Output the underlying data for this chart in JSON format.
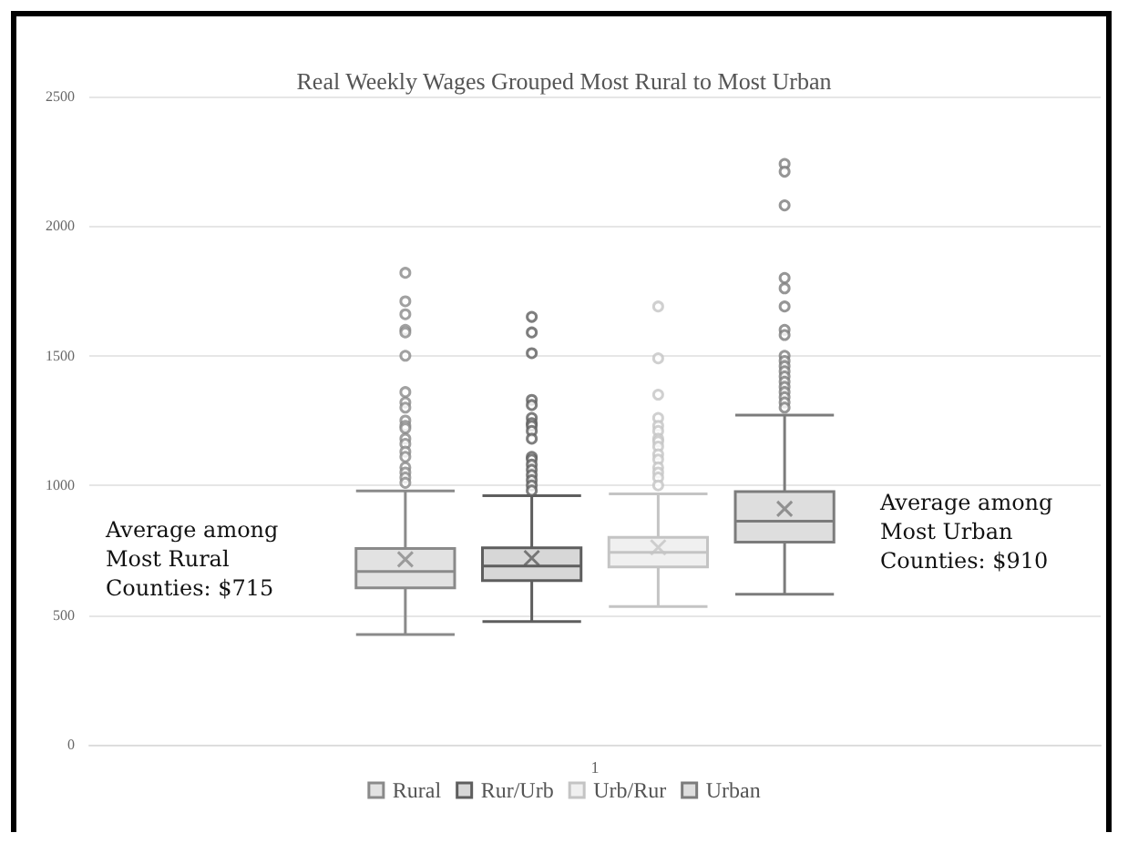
{
  "chart_data": {
    "type": "box",
    "title": "Real Weekly Wages Grouped Most Rural to Most Urban",
    "categories": [
      "1"
    ],
    "ylim": [
      0,
      2500
    ],
    "yticks": [
      0,
      500,
      1000,
      1500,
      2000,
      2500
    ],
    "grid": "y",
    "legend": "bottom",
    "marker": "circle",
    "annotations": [
      "Average among\nMost Rural\nCounties: $715",
      "Average among\nMost Urban\nCounties: $910"
    ],
    "series": [
      {
        "name": "Rural",
        "color": "#8a8a8a",
        "boxes": [
          {
            "low": 425,
            "q1": 605,
            "median": 668,
            "q3": 757,
            "high": 979,
            "mean": 715,
            "outliers": [
              1820,
              1710,
              1660,
              1600,
              1590,
              1500,
              1360,
              1320,
              1300,
              1250,
              1230,
              1220,
              1180,
              1160,
              1130,
              1110,
              1070,
              1050,
              1030,
              1010
            ]
          }
        ]
      },
      {
        "name": "Rur/Urb",
        "color": "#5e5e5e",
        "boxes": [
          {
            "low": 475,
            "q1": 633,
            "median": 689,
            "q3": 759,
            "high": 960,
            "mean": 720,
            "outliers": [
              1650,
              1590,
              1510,
              1330,
              1310,
              1260,
              1240,
              1230,
              1210,
              1180,
              1110,
              1100,
              1080,
              1060,
              1040,
              1020,
              1000,
              980
            ]
          }
        ]
      },
      {
        "name": "Urb/Rur",
        "color": "#c4c4c4",
        "boxes": [
          {
            "low": 533,
            "q1": 686,
            "median": 742,
            "q3": 800,
            "high": 967,
            "mean": 761,
            "outliers": [
              1690,
              1490,
              1350,
              1260,
              1230,
              1210,
              1180,
              1170,
              1150,
              1120,
              1100,
              1070,
              1050,
              1030,
              1000
            ]
          }
        ]
      },
      {
        "name": "Urban",
        "color": "#7c7c7c",
        "boxes": [
          {
            "low": 580,
            "q1": 781,
            "median": 862,
            "q3": 976,
            "high": 1271,
            "mean": 910,
            "outliers": [
              2240,
              2210,
              2080,
              1800,
              1760,
              1690,
              1600,
              1580,
              1500,
              1480,
              1460,
              1440,
              1420,
              1400,
              1380,
              1360,
              1340,
              1320,
              1300
            ]
          }
        ]
      }
    ]
  }
}
